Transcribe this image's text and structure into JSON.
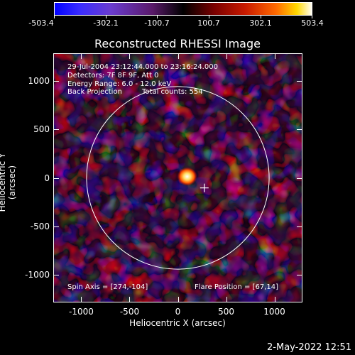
{
  "colorbar": {
    "tick_labels": [
      "-503.4",
      "-302.1",
      "-100.7",
      "100.7",
      "302.1",
      "503.4"
    ]
  },
  "title": "Reconstructed RHESSI Image",
  "info": {
    "time_range": "29-Jul-2004 23:12:44.000 to 23:16:24.000",
    "detectors": "Detectors: 7F 8F 9F, Att 0",
    "energy": "Energy Range: 6.0 - 12.0 keV",
    "method": "Back Projection",
    "counts": "Total counts: 554"
  },
  "spin_axis": "Spin Axis = [274,-104]",
  "flare_position": "Flare Position = [67,14]",
  "x_axis": {
    "label": "Heliocentric X (arcsec)",
    "tick_labels": [
      "-1000",
      "-500",
      "0",
      "500",
      "1000"
    ],
    "ticks": [
      -1000,
      -500,
      0,
      500,
      1000
    ]
  },
  "y_axis": {
    "label": "Heliocentric Y (arcsec)",
    "tick_labels": [
      "1000",
      "500",
      "0",
      "-500",
      "-1000"
    ],
    "ticks": [
      1000,
      500,
      0,
      -500,
      -1000
    ]
  },
  "range": {
    "xlim": [
      -1290,
      1290
    ],
    "ylim": [
      -1290,
      1290
    ]
  },
  "solar_radius_arcsec": 945,
  "marker": {
    "x": 274,
    "y": -104
  },
  "footer_date": "2-May-2022 12:51",
  "colors": {
    "frame": "#ffffff",
    "background": "#000000"
  }
}
